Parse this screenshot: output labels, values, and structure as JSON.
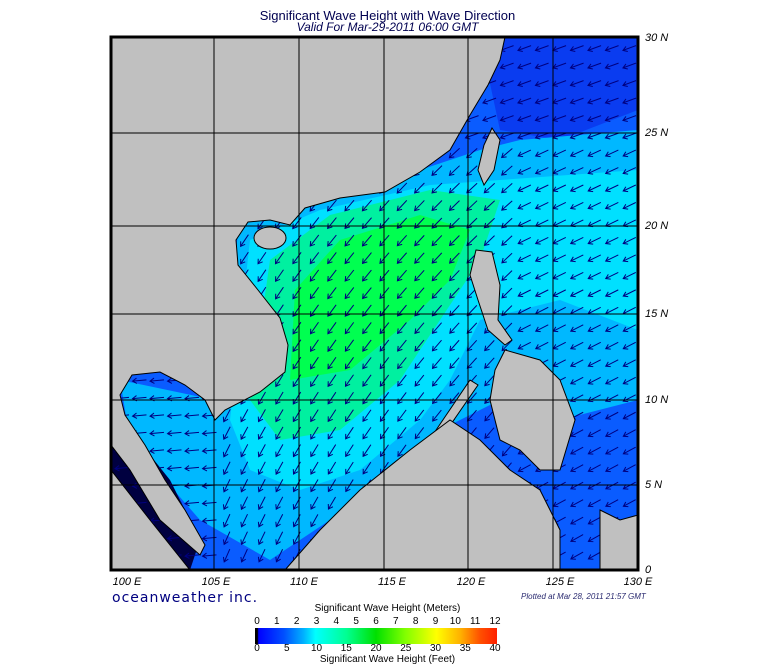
{
  "header": {
    "title": "Significant Wave Height with Wave Direction",
    "subtitle": "Valid For Mar-29-2011 06:00 GMT"
  },
  "map": {
    "lon_labels": [
      "100 E",
      "105 E",
      "110 E",
      "115 E",
      "120 E",
      "125 E",
      "130 E"
    ],
    "lat_labels": [
      "30 N",
      "25 N",
      "20 N",
      "15 N",
      "10 N",
      "5 N",
      "0"
    ],
    "colors": {
      "land": "#c0c0c0",
      "arrow": "#000080",
      "deep": "#0a3cf0",
      "mid": "#0a8cff",
      "light": "#00d8ff",
      "teal": "#00f0b0",
      "green": "#00ff40",
      "dark": "#000040"
    }
  },
  "footer": {
    "logo": "oceanweather inc.",
    "plotted": "Plotted at Mar 28, 2011 21:57 GMT"
  },
  "colorbar": {
    "title_meters": "Significant Wave Height (Meters)",
    "title_feet": "Significant Wave Height (Feet)",
    "meters_ticks": [
      "0",
      "1",
      "2",
      "3",
      "4",
      "5",
      "6",
      "7",
      "8",
      "9",
      "10",
      "11",
      "12"
    ],
    "feet_ticks": [
      "0",
      "5",
      "10",
      "15",
      "20",
      "25",
      "30",
      "35",
      "40"
    ],
    "range_meters": [
      0,
      12
    ],
    "range_feet": [
      0,
      40
    ]
  }
}
